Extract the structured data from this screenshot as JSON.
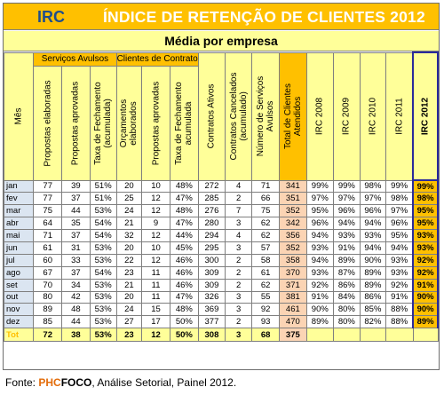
{
  "title": {
    "irc": "IRC",
    "main": "ÍNDICE DE RETENÇÃO DE CLIENTES 2012"
  },
  "subtitle": "Média por empresa",
  "groups": {
    "servicos": "Serviços Avulsos",
    "clientes": "Clientes de Contrato"
  },
  "headers": {
    "mes": "Mês",
    "propostas_elaboradas": "Propostas elaboradas",
    "propostas_aprovadas": "Propostas aprovadas",
    "taxa_fech_acum": [
      "Taxa de Fechamento",
      "(acumulada)"
    ],
    "orcamentos_elaborados": [
      "Orçamentos",
      "elaborados"
    ],
    "propostas_aprovadas2": "Propostas aprovadas",
    "taxa_fech_acum2": [
      "Taxa de Fechamento",
      "acumulada"
    ],
    "contratos_ativos": "Contratos Ativos",
    "contratos_cancelados": [
      "Contratos Cancelados",
      "(acumulado)"
    ],
    "numero_servicos": [
      "Número de Serviços",
      "Avulsos"
    ],
    "total_clientes": [
      "Total de Clientes",
      "Atendidos"
    ],
    "irc2008": "IRC 2008",
    "irc2009": "IRC 2009",
    "irc2010": "IRC 2010",
    "irc2011": "IRC 2011",
    "irc2012": "IRC 2012"
  },
  "rows": [
    [
      "jan",
      "77",
      "39",
      "51%",
      "20",
      "10",
      "48%",
      "272",
      "4",
      "71",
      "341",
      "99%",
      "99%",
      "98%",
      "99%",
      "99%"
    ],
    [
      "fev",
      "77",
      "37",
      "51%",
      "25",
      "12",
      "47%",
      "285",
      "2",
      "66",
      "351",
      "97%",
      "97%",
      "97%",
      "98%",
      "98%"
    ],
    [
      "mar",
      "75",
      "44",
      "53%",
      "24",
      "12",
      "48%",
      "276",
      "7",
      "75",
      "352",
      "95%",
      "96%",
      "96%",
      "97%",
      "95%"
    ],
    [
      "abr",
      "64",
      "35",
      "54%",
      "21",
      "9",
      "47%",
      "280",
      "3",
      "62",
      "342",
      "96%",
      "94%",
      "94%",
      "96%",
      "95%"
    ],
    [
      "mai",
      "71",
      "37",
      "54%",
      "32",
      "12",
      "44%",
      "294",
      "4",
      "62",
      "356",
      "94%",
      "93%",
      "93%",
      "95%",
      "93%"
    ],
    [
      "jun",
      "61",
      "31",
      "53%",
      "20",
      "10",
      "45%",
      "295",
      "3",
      "57",
      "352",
      "93%",
      "91%",
      "94%",
      "94%",
      "93%"
    ],
    [
      "jul",
      "60",
      "33",
      "53%",
      "22",
      "12",
      "46%",
      "300",
      "2",
      "58",
      "358",
      "94%",
      "89%",
      "90%",
      "93%",
      "92%"
    ],
    [
      "ago",
      "67",
      "37",
      "54%",
      "23",
      "11",
      "46%",
      "309",
      "2",
      "61",
      "370",
      "93%",
      "87%",
      "89%",
      "93%",
      "92%"
    ],
    [
      "set",
      "70",
      "34",
      "53%",
      "21",
      "11",
      "46%",
      "309",
      "2",
      "62",
      "371",
      "92%",
      "86%",
      "89%",
      "92%",
      "91%"
    ],
    [
      "out",
      "80",
      "42",
      "53%",
      "20",
      "11",
      "47%",
      "326",
      "3",
      "55",
      "381",
      "91%",
      "84%",
      "86%",
      "91%",
      "90%"
    ],
    [
      "nov",
      "89",
      "48",
      "53%",
      "24",
      "15",
      "48%",
      "369",
      "3",
      "92",
      "461",
      "90%",
      "80%",
      "85%",
      "88%",
      "90%"
    ],
    [
      "dez",
      "85",
      "44",
      "53%",
      "27",
      "17",
      "50%",
      "377",
      "2",
      "93",
      "470",
      "89%",
      "80%",
      "82%",
      "88%",
      "89%"
    ]
  ],
  "total": [
    "Tot",
    "72",
    "38",
    "53%",
    "23",
    "12",
    "50%",
    "308",
    "3",
    "68",
    "375",
    "",
    "",
    "",
    "",
    ""
  ],
  "footer": {
    "prefix": "Fonte: ",
    "phc": "PHC",
    "foco": "FOCO",
    "rest": ", Análise Setorial, Painel 2012."
  }
}
